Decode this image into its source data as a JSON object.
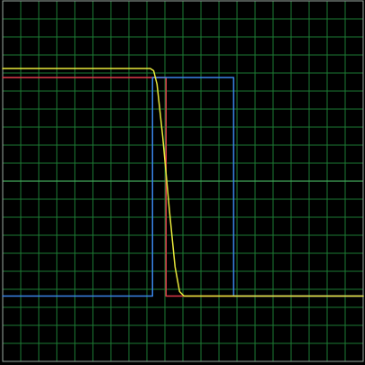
{
  "chart_data": {
    "type": "line",
    "title": "",
    "xlabel": "",
    "ylabel": "",
    "xlim": [
      0,
      16
    ],
    "ylim": [
      -8,
      8
    ],
    "grid": true,
    "grid_divisions": {
      "x": 20,
      "y": 20
    },
    "center_axis": true,
    "legend": "none",
    "series": [
      {
        "color": "#e03a4a",
        "x": [
          0,
          6.85,
          6.85,
          7.25,
          7.25,
          16
        ],
        "y": [
          4.6,
          4.6,
          4.6,
          4.6,
          -5.1,
          -5.1
        ]
      },
      {
        "color": "#3a84e8",
        "x": [
          0,
          6.65,
          6.65,
          10.25,
          10.25,
          16
        ],
        "y": [
          -5.1,
          -5.1,
          4.6,
          4.6,
          -5.1,
          -5.1
        ]
      },
      {
        "color": "#e8e83a",
        "x": [
          0,
          6.55,
          6.7,
          6.85,
          7.1,
          7.4,
          7.65,
          7.85,
          8.05,
          8.35,
          16
        ],
        "y": [
          5.0,
          5.0,
          4.9,
          4.3,
          2.0,
          -1.3,
          -3.8,
          -4.9,
          -5.1,
          -5.1,
          -5.1
        ]
      }
    ]
  },
  "colors": {
    "background": "#000000",
    "grid": "#1c7a33",
    "axis": "#43a95b",
    "frame": "#9aa7a0"
  }
}
